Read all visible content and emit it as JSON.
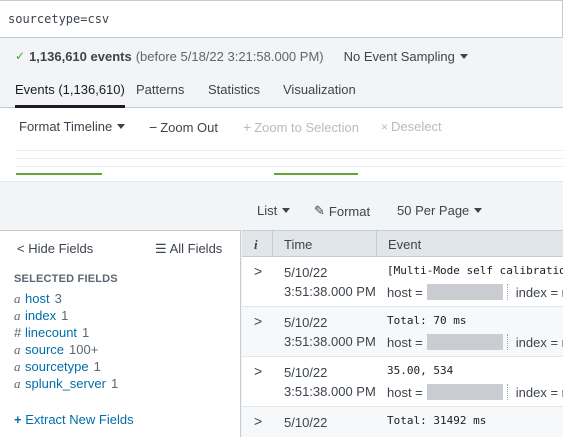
{
  "search": {
    "query": "sourcetype=csv"
  },
  "status": {
    "check_icon": "check-icon",
    "event_count": "1,136,610 events",
    "before_text": "(before 5/18/22 3:21:58.000 PM)",
    "sampling_label": "No Event Sampling"
  },
  "tabs": [
    {
      "label": "Events (1,136,610)",
      "active": true
    },
    {
      "label": "Patterns"
    },
    {
      "label": "Statistics"
    },
    {
      "label": "Visualization"
    }
  ],
  "timeline": {
    "format_label": "Format Timeline",
    "zoom_out_label": "Zoom Out",
    "zoom_selection_label": "Zoom to Selection",
    "deselect_label": "Deselect"
  },
  "controls": {
    "list_label": "List",
    "format_label": "Format",
    "per_page_label": "50 Per Page"
  },
  "sidebar": {
    "hide_fields_label": "Hide Fields",
    "all_fields_label": "All Fields",
    "selected_heading": "SELECTED FIELDS",
    "fields": [
      {
        "type": "a",
        "name": "host",
        "count": "3"
      },
      {
        "type": "a",
        "name": "index",
        "count": "1"
      },
      {
        "type": "#",
        "name": "linecount",
        "count": "1"
      },
      {
        "type": "a",
        "name": "source",
        "count": "100+"
      },
      {
        "type": "a",
        "name": "sourcetype",
        "count": "1"
      },
      {
        "type": "a",
        "name": "splunk_server",
        "count": "1"
      }
    ],
    "extract_label": "Extract New Fields"
  },
  "table": {
    "headers": {
      "info": "i",
      "time": "Time",
      "event": "Event"
    },
    "rows": [
      {
        "date": "5/10/22",
        "time": "3:51:38.000 PM",
        "raw": "[Multi-Mode self calibration]",
        "host_label": "host =",
        "index_label": "index = m"
      },
      {
        "date": "5/10/22",
        "time": "3:51:38.000 PM",
        "raw": "Total: 70 ms",
        "host_label": "host =",
        "index_label": "index = m"
      },
      {
        "date": "5/10/22",
        "time": "3:51:38.000 PM",
        "raw": "35.00, 534",
        "host_label": "host =",
        "index_label": "index = m"
      },
      {
        "date": "5/10/22",
        "time": "",
        "raw": "Total: 31492 ms",
        "host_label": "",
        "index_label": ""
      }
    ]
  },
  "colors": {
    "accent_link": "#006eaa",
    "success": "#4c9f3a",
    "timeline_bar": "#65a637"
  }
}
